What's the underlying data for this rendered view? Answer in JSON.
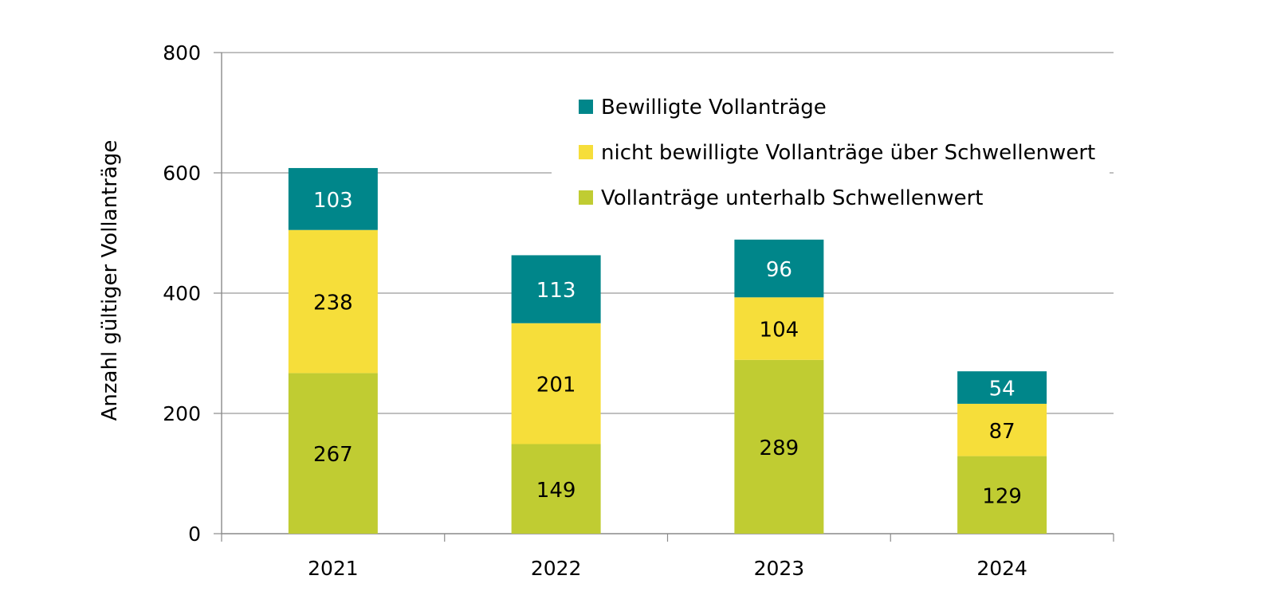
{
  "chart_data": {
    "type": "bar",
    "stacked": true,
    "categories": [
      "2021",
      "2022",
      "2023",
      "2024"
    ],
    "series": [
      {
        "name": "Vollanträge unterhalb Schwellenwert",
        "values": [
          267,
          149,
          289,
          129
        ],
        "color": "#c0cc32",
        "label_color": "#000000"
      },
      {
        "name": "nicht bewilligte Vollanträge über Schwellenwert",
        "values": [
          238,
          201,
          104,
          87
        ],
        "color": "#f6de3a",
        "label_color": "#000000"
      },
      {
        "name": "Bewilligte Vollanträge",
        "values": [
          103,
          113,
          96,
          54
        ],
        "color": "#00868a",
        "label_color": "#ffffff"
      }
    ],
    "ylabel": "Anzahl gültiger Vollanträge",
    "xlabel": "",
    "ylim": [
      0,
      800
    ],
    "yticks": [
      "0",
      "200",
      "400",
      "600",
      "800"
    ],
    "grid": true,
    "legend_position": "top-right",
    "legend_order": [
      "Bewilligte Vollanträge",
      "nicht bewilligte Vollanträge über Schwellenwert",
      "Vollanträge unterhalb Schwellenwert"
    ]
  }
}
